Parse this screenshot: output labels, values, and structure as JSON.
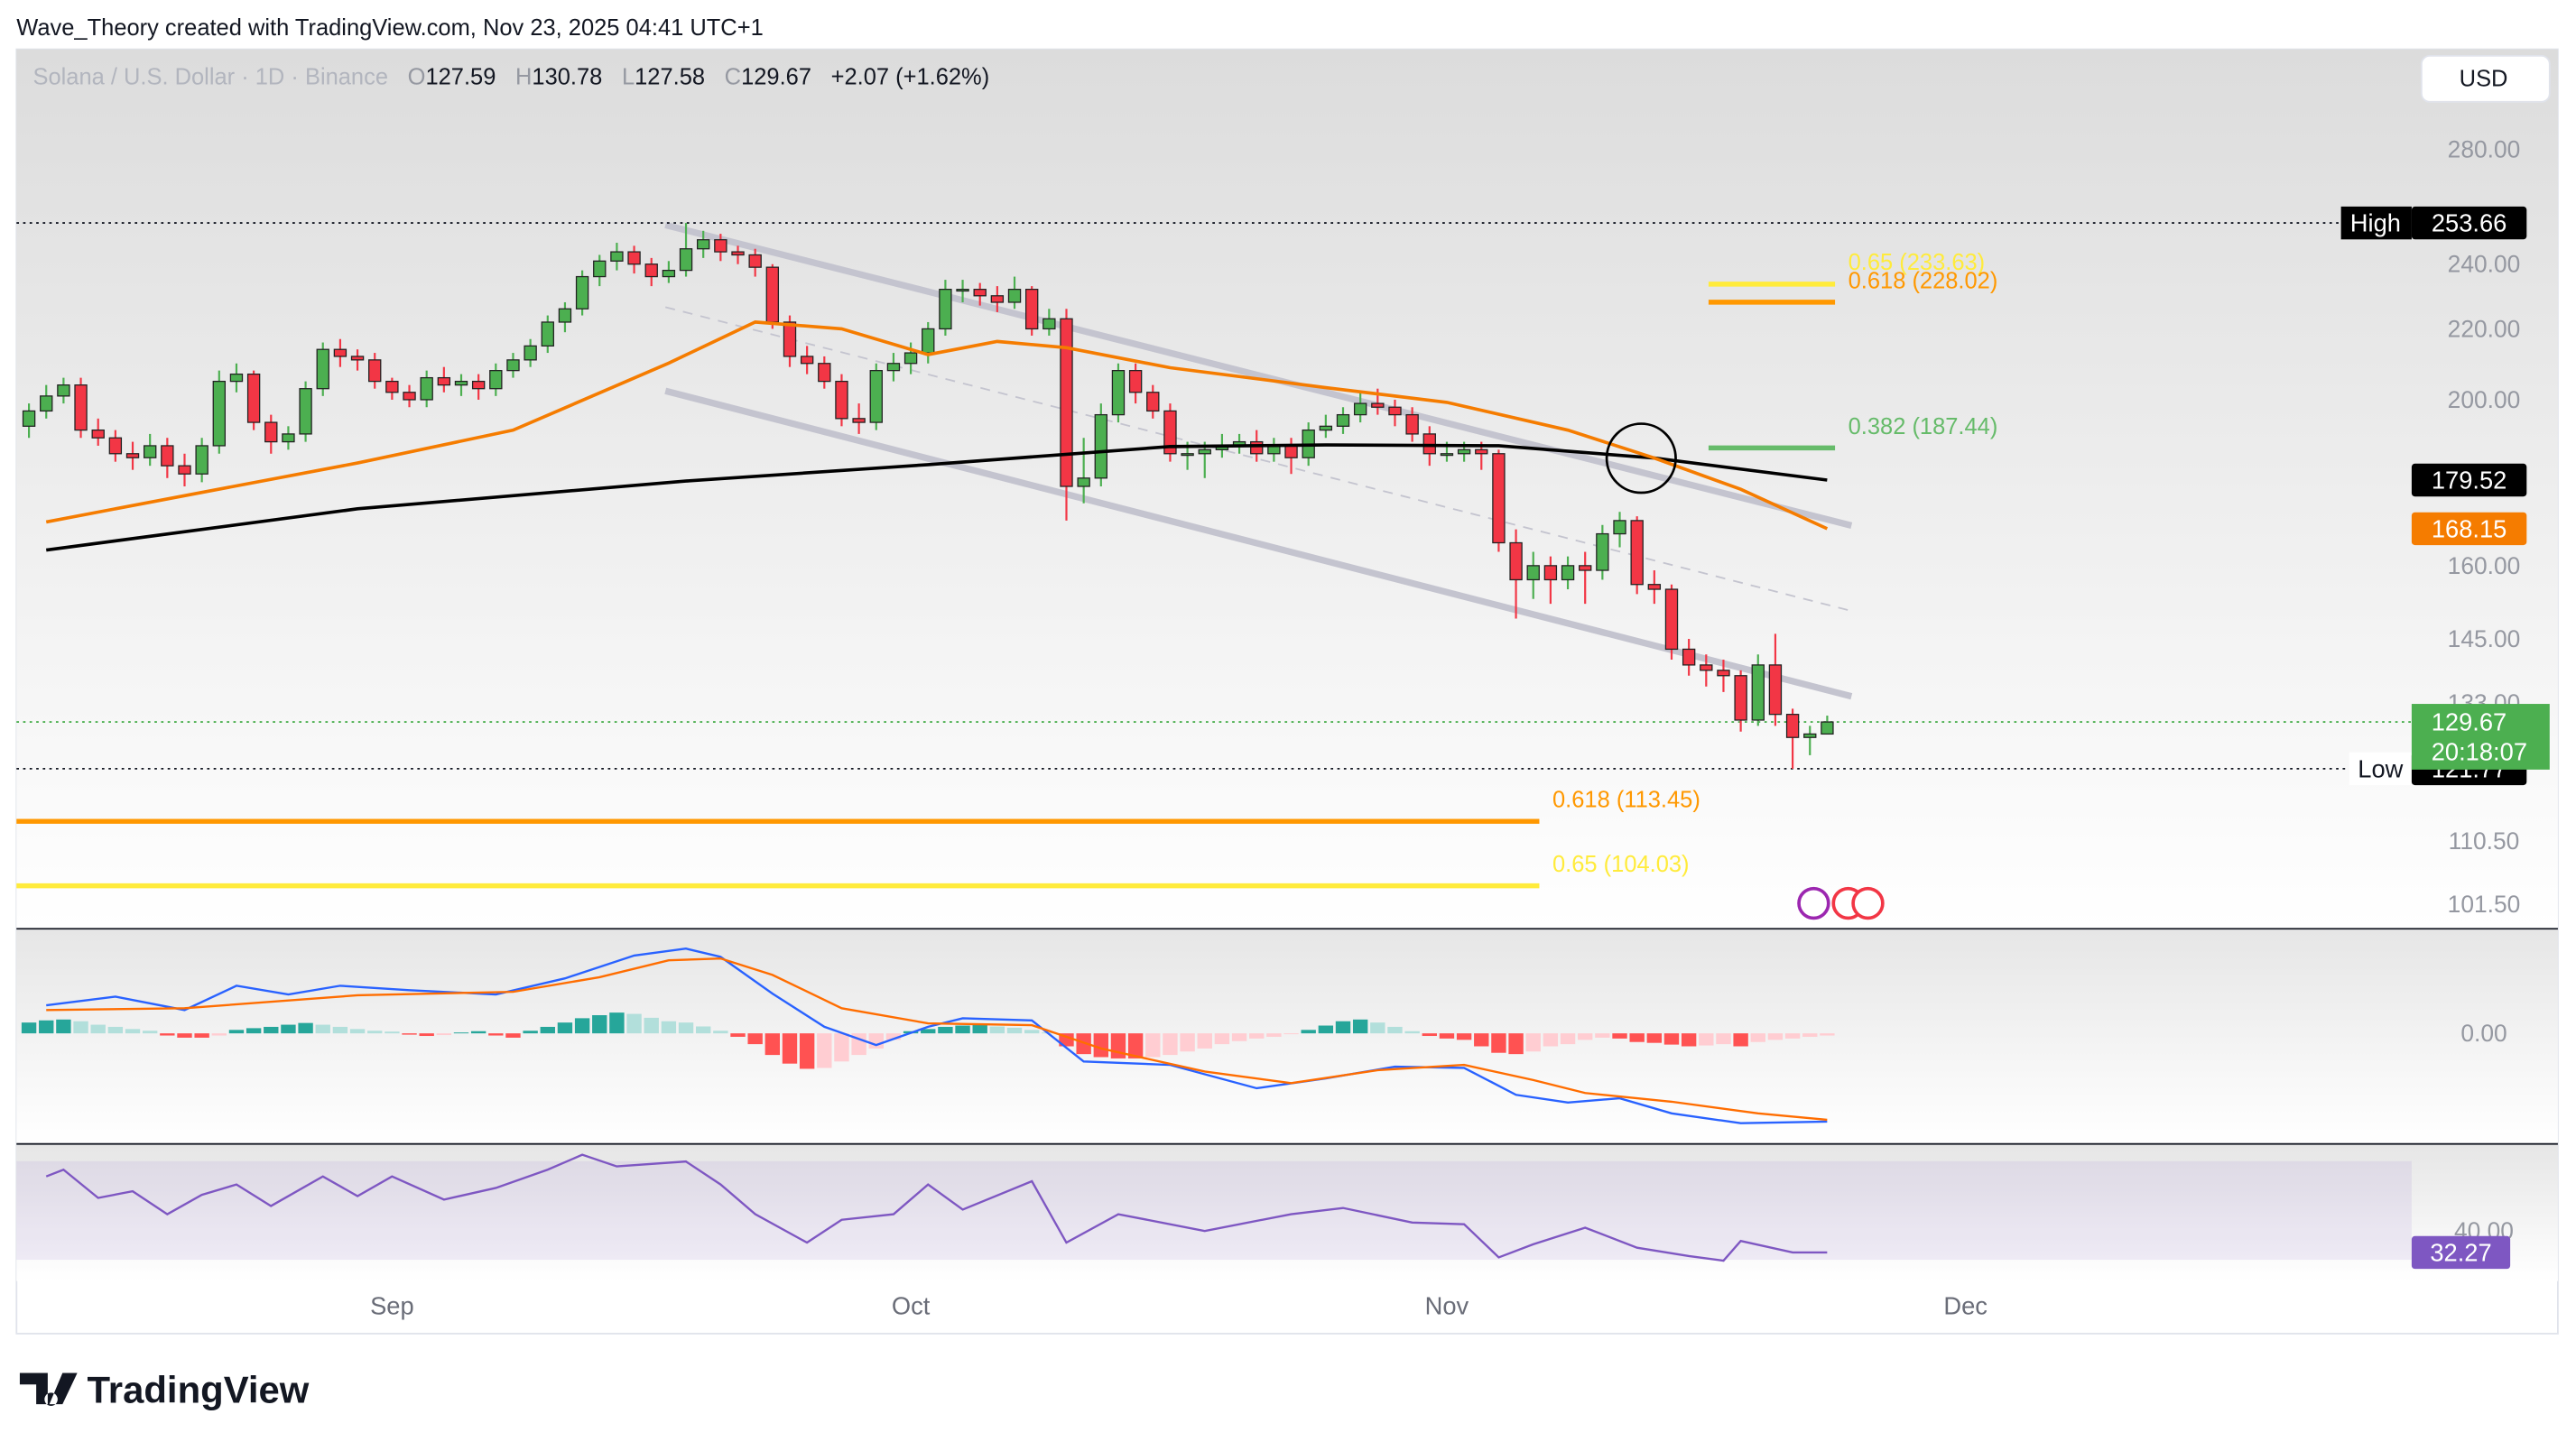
{
  "header": {
    "text": "Wave_Theory created with TradingView.com, Nov 23, 2025 04:41 UTC+1"
  },
  "brand": "TradingView",
  "chart_data": [
    {
      "type": "candlestick",
      "title": "Solana / U.S. Dollar · 1D · Binance",
      "ohlc_prefixes": [
        "O",
        "H",
        "L",
        "C"
      ],
      "change_label": "+2.07 (+1.62%)",
      "currency": "USD",
      "log": true,
      "up_color": "#4caf50",
      "down_color": "#f23645",
      "xlim": [
        -0.72,
        137.8
      ],
      "xticks": [
        {
          "value": 21,
          "label": "Sep"
        },
        {
          "value": 51,
          "label": "Oct"
        },
        {
          "value": 82,
          "label": "Nov"
        },
        {
          "value": 112,
          "label": "Dec"
        }
      ],
      "ylim": [
        98.3,
        320.4
      ],
      "yticks": [
        {
          "value": 280,
          "label": "280.00"
        },
        {
          "value": 240,
          "label": "240.00"
        },
        {
          "value": 220,
          "label": "220.00"
        },
        {
          "value": 200,
          "label": "200.00"
        },
        {
          "value": 160,
          "label": "160.00"
        },
        {
          "value": 145,
          "label": "145.00"
        },
        {
          "value": 133,
          "label": "133.00"
        },
        {
          "value": 110.5,
          "label": "110.50"
        },
        {
          "value": 101.5,
          "label": "101.50"
        }
      ],
      "candles": [
        [
          193,
          199,
          190,
          197
        ],
        [
          197,
          204,
          195,
          201
        ],
        [
          201,
          206,
          199,
          204
        ],
        [
          204,
          206,
          190,
          192
        ],
        [
          192,
          195,
          188,
          190
        ],
        [
          190,
          192,
          184,
          186
        ],
        [
          186,
          189,
          182,
          185
        ],
        [
          185,
          191,
          183,
          188
        ],
        [
          188,
          190,
          180,
          183
        ],
        [
          183,
          186,
          178,
          181
        ],
        [
          181,
          190,
          179,
          188
        ],
        [
          188,
          208,
          186,
          205
        ],
        [
          205,
          210,
          202,
          207
        ],
        [
          207,
          208,
          192,
          194
        ],
        [
          194,
          196,
          186,
          189
        ],
        [
          189,
          193,
          187,
          191
        ],
        [
          191,
          205,
          189,
          203
        ],
        [
          203,
          216,
          201,
          214
        ],
        [
          214,
          217,
          209,
          212
        ],
        [
          212,
          214,
          208,
          211
        ],
        [
          211,
          213,
          203,
          205
        ],
        [
          205,
          206,
          200,
          202
        ],
        [
          202,
          204,
          198,
          200
        ],
        [
          200,
          208,
          198,
          206
        ],
        [
          206,
          209,
          202,
          204
        ],
        [
          204,
          207,
          201,
          205
        ],
        [
          205,
          207,
          200,
          203
        ],
        [
          203,
          210,
          201,
          208
        ],
        [
          208,
          213,
          206,
          211
        ],
        [
          211,
          217,
          209,
          215
        ],
        [
          215,
          224,
          213,
          222
        ],
        [
          222,
          228,
          219,
          226
        ],
        [
          226,
          238,
          224,
          236
        ],
        [
          236,
          243,
          233,
          241
        ],
        [
          241,
          247,
          238,
          244
        ],
        [
          244,
          246,
          237,
          240
        ],
        [
          240,
          242,
          233,
          236
        ],
        [
          236,
          241,
          234,
          238
        ],
        [
          238,
          253.66,
          236,
          245
        ],
        [
          245,
          251,
          242,
          248
        ],
        [
          248,
          250,
          241,
          244
        ],
        [
          244,
          246,
          240,
          243
        ],
        [
          243,
          245,
          236,
          239
        ],
        [
          239,
          240,
          220,
          222
        ],
        [
          222,
          224,
          209,
          212
        ],
        [
          212,
          215,
          207,
          210
        ],
        [
          210,
          212,
          203,
          205
        ],
        [
          205,
          207,
          193,
          195
        ],
        [
          195,
          199,
          191,
          194
        ],
        [
          194,
          210,
          192,
          208
        ],
        [
          208,
          213,
          205,
          210
        ],
        [
          210,
          216,
          207,
          213
        ],
        [
          213,
          222,
          210,
          220
        ],
        [
          220,
          235,
          218,
          232
        ],
        [
          232,
          235,
          228,
          232
        ],
        [
          232,
          234,
          227,
          230
        ],
        [
          230,
          233,
          225,
          228
        ],
        [
          228,
          236,
          226,
          232
        ],
        [
          232,
          233,
          218,
          220
        ],
        [
          220,
          226,
          218,
          223
        ],
        [
          223,
          226,
          170,
          178
        ],
        [
          178,
          190,
          174,
          180
        ],
        [
          180,
          199,
          178,
          196
        ],
        [
          196,
          210,
          194,
          208
        ],
        [
          208,
          210,
          199,
          202
        ],
        [
          202,
          204,
          195,
          197
        ],
        [
          197,
          199,
          184,
          186
        ],
        [
          186,
          189,
          182,
          186
        ],
        [
          186,
          189,
          180,
          187
        ],
        [
          187,
          191,
          185,
          188
        ],
        [
          188,
          191,
          186,
          189
        ],
        [
          189,
          192,
          184,
          186
        ],
        [
          186,
          190,
          184,
          188
        ],
        [
          188,
          190,
          181,
          185
        ],
        [
          185,
          194,
          183,
          192
        ],
        [
          192,
          196,
          190,
          193
        ],
        [
          193,
          198,
          191,
          196
        ],
        [
          196,
          202,
          194,
          199
        ],
        [
          199,
          203,
          196,
          198
        ],
        [
          198,
          200,
          193,
          196
        ],
        [
          196,
          198,
          189,
          191
        ],
        [
          191,
          193,
          183,
          186
        ],
        [
          186,
          189,
          184,
          186
        ],
        [
          186,
          189,
          184,
          187
        ],
        [
          187,
          189,
          182,
          186
        ],
        [
          186,
          187,
          163,
          165
        ],
        [
          165,
          168,
          149,
          157
        ],
        [
          157,
          163,
          153,
          160
        ],
        [
          160,
          162,
          152,
          157
        ],
        [
          157,
          162,
          155,
          160
        ],
        [
          160,
          163,
          152,
          159
        ],
        [
          159,
          169,
          157,
          167
        ],
        [
          167,
          172,
          164,
          170
        ],
        [
          170,
          171,
          154,
          156
        ],
        [
          156,
          159,
          152,
          155
        ],
        [
          155,
          156,
          141,
          143
        ],
        [
          143,
          145,
          138,
          140
        ],
        [
          140,
          142,
          136,
          139
        ],
        [
          139,
          141,
          135,
          138
        ],
        [
          138,
          139,
          128,
          130
        ],
        [
          130,
          142,
          129,
          140
        ],
        [
          140,
          146,
          129,
          131
        ],
        [
          131,
          132,
          121.77,
          127
        ],
        [
          127,
          129,
          124,
          127.59
        ],
        [
          127.59,
          130.78,
          127.58,
          129.67
        ]
      ],
      "series": [
        {
          "color": "#000000",
          "x": [
            1,
            19,
            38,
            52,
            66,
            75,
            85,
            94,
            104
          ],
          "values": [
            163.4,
            172.7,
            179.3,
            183.3,
            187.8,
            188.2,
            188.0,
            184.9,
            179.52
          ]
        },
        {
          "color": "#f57c00",
          "x": [
            1,
            9,
            19,
            28,
            37,
            42,
            47,
            52,
            56,
            60,
            66,
            75,
            82,
            89,
            94,
            99,
            104
          ],
          "values": [
            169.7,
            175.8,
            183.7,
            192.0,
            210.1,
            222.0,
            220.0,
            212.5,
            216.3,
            214.5,
            208.8,
            203.3,
            199.3,
            192.0,
            184.9,
            177.3,
            168.15
          ]
        }
      ],
      "fib_levels": [
        {
          "label": "0.65 (233.63)",
          "value": 233.63,
          "color": "#ffeb3b"
        },
        {
          "label": "0.618 (228.02)",
          "value": 228.02,
          "color": "#ff9800"
        },
        {
          "label": "0.382 (187.44)",
          "value": 187.44,
          "color": "#66bb6a"
        },
        {
          "label": "0.618 (113.45)",
          "value": 113.45,
          "color": "#ff9800"
        },
        {
          "label": "0.65 (104.03)",
          "value": 104.03,
          "color": "#ffeb3b"
        }
      ],
      "high": {
        "label": "High",
        "value": 253.66
      },
      "low": {
        "label": "Low",
        "value": 121.77
      },
      "countdown": "20:18:07"
    },
    {
      "type": "macd",
      "ylim": [
        -25,
        24
      ],
      "yticks": [
        {
          "value": 0,
          "label": "0.00"
        }
      ],
      "histogram_colors": [
        "#26a69a",
        "#b2dfdb",
        "#ff5252",
        "#ffcdd2"
      ],
      "histogram": [
        2.5,
        3,
        3.2,
        2.8,
        2,
        1.5,
        1,
        0.6,
        -0.5,
        -1,
        -1,
        -0.5,
        0.8,
        1.2,
        1.5,
        2,
        2.4,
        2,
        1.5,
        1,
        0.6,
        0.4,
        -0.3,
        -0.6,
        -0.4,
        0.2,
        0.5,
        -0.5,
        -1,
        0.6,
        1.5,
        2.5,
        3.5,
        4.2,
        4.8,
        4.5,
        3.6,
        2.8,
        2.5,
        1.6,
        0.6,
        -0.8,
        -2.5,
        -5,
        -7,
        -8.2,
        -8,
        -6.5,
        -5,
        -3.5,
        -1.5,
        0.5,
        1,
        1.5,
        1.8,
        2,
        1.6,
        1.3,
        0.8,
        0.2,
        -3,
        -4.8,
        -5.5,
        -5.8,
        -5.8,
        -5.5,
        -5,
        -4.2,
        -3.5,
        -2.5,
        -1.8,
        -1.2,
        -0.8,
        -0.2,
        0.8,
        1.8,
        2.8,
        3.2,
        2.5,
        1.5,
        0.5,
        -0.6,
        -1.2,
        -1.5,
        -3,
        -4.5,
        -4.8,
        -4.2,
        -3,
        -2.5,
        -1.5,
        -1,
        -1.2,
        -2,
        -2.2,
        -2.6,
        -3,
        -2.8,
        -2.5,
        -3,
        -2,
        -1.5,
        -1.2,
        -0.8,
        -0.5
      ],
      "series": [
        {
          "color": "#2962ff",
          "x": [
            1,
            5,
            9,
            12,
            15,
            18,
            22,
            27,
            31,
            35,
            38,
            40,
            43,
            46,
            49,
            52,
            54,
            58,
            61,
            66,
            71,
            75,
            79,
            83,
            86,
            89,
            92,
            95,
            99,
            104
          ],
          "values": [
            6.5,
            8.5,
            5.4,
            11,
            9,
            11,
            10,
            9,
            12.7,
            18,
            19.6,
            17.7,
            9.2,
            1.5,
            -2.7,
            1.5,
            3.5,
            3,
            -6.5,
            -7.3,
            -12.7,
            -10.4,
            -7.7,
            -8,
            -14.2,
            -16,
            -15,
            -18.5,
            -20.8,
            -20.4
          ]
        },
        {
          "color": "#ff6d00",
          "x": [
            1,
            9,
            19,
            28,
            33,
            37,
            40,
            43,
            47,
            52,
            58,
            62,
            68,
            73,
            78,
            83,
            87,
            90,
            95,
            100,
            104
          ],
          "values": [
            5.4,
            5.8,
            8.8,
            9.6,
            13,
            16.9,
            17.3,
            13.5,
            5.8,
            2.3,
            1.9,
            -3.5,
            -8.8,
            -11.5,
            -8.5,
            -7.3,
            -10.8,
            -13.8,
            -15.8,
            -18.5,
            -20
          ]
        }
      ]
    },
    {
      "type": "line",
      "ylim": [
        22,
        71
      ],
      "yticks": [
        {
          "value": 40,
          "label": "40.00"
        }
      ],
      "series": [
        {
          "color": "#7e57c2",
          "x": [
            1,
            2,
            4,
            6,
            8,
            10,
            12,
            14,
            17,
            19,
            21,
            24,
            27,
            30,
            32,
            34,
            38,
            40,
            42,
            45,
            47,
            50,
            52,
            54,
            58,
            60,
            63,
            68,
            73,
            76,
            80,
            83,
            85,
            87,
            90,
            93,
            96,
            98,
            99,
            102,
            104
          ],
          "values": [
            59.6,
            62,
            51.9,
            54.3,
            46,
            53,
            56.7,
            49,
            59.6,
            52.5,
            59.6,
            51.3,
            55.5,
            62,
            67.4,
            63.2,
            65,
            56.7,
            46,
            35.8,
            44,
            46,
            56.7,
            47.7,
            57.9,
            35.8,
            46,
            40,
            46,
            48.3,
            43,
            42.4,
            30.5,
            35.2,
            41.2,
            34,
            31,
            29.3,
            36.4,
            32.3,
            32.27
          ]
        }
      ]
    }
  ]
}
